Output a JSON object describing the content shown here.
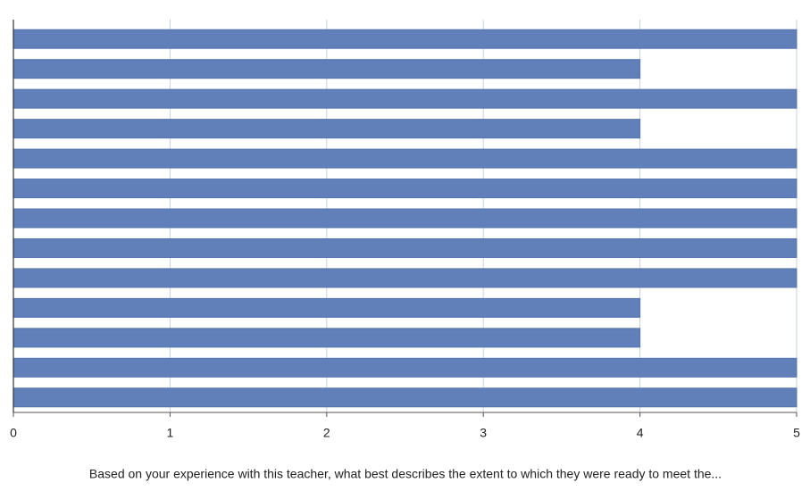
{
  "chart_data": {
    "type": "bar",
    "orientation": "horizontal",
    "title": "Based on your experience with this teacher, what best describes the extent to which they were ready to meet the...",
    "categories": [
      null,
      null,
      null,
      null,
      null,
      null,
      null,
      null,
      null,
      null,
      null,
      null,
      null
    ],
    "values": [
      5,
      4,
      5,
      4,
      5,
      5,
      5,
      5,
      5,
      4,
      4,
      5,
      5
    ],
    "color": "#6180b9",
    "xlim": [
      0,
      5
    ],
    "xticks": [
      0,
      1,
      2,
      3,
      4,
      5
    ],
    "grid": true
  }
}
